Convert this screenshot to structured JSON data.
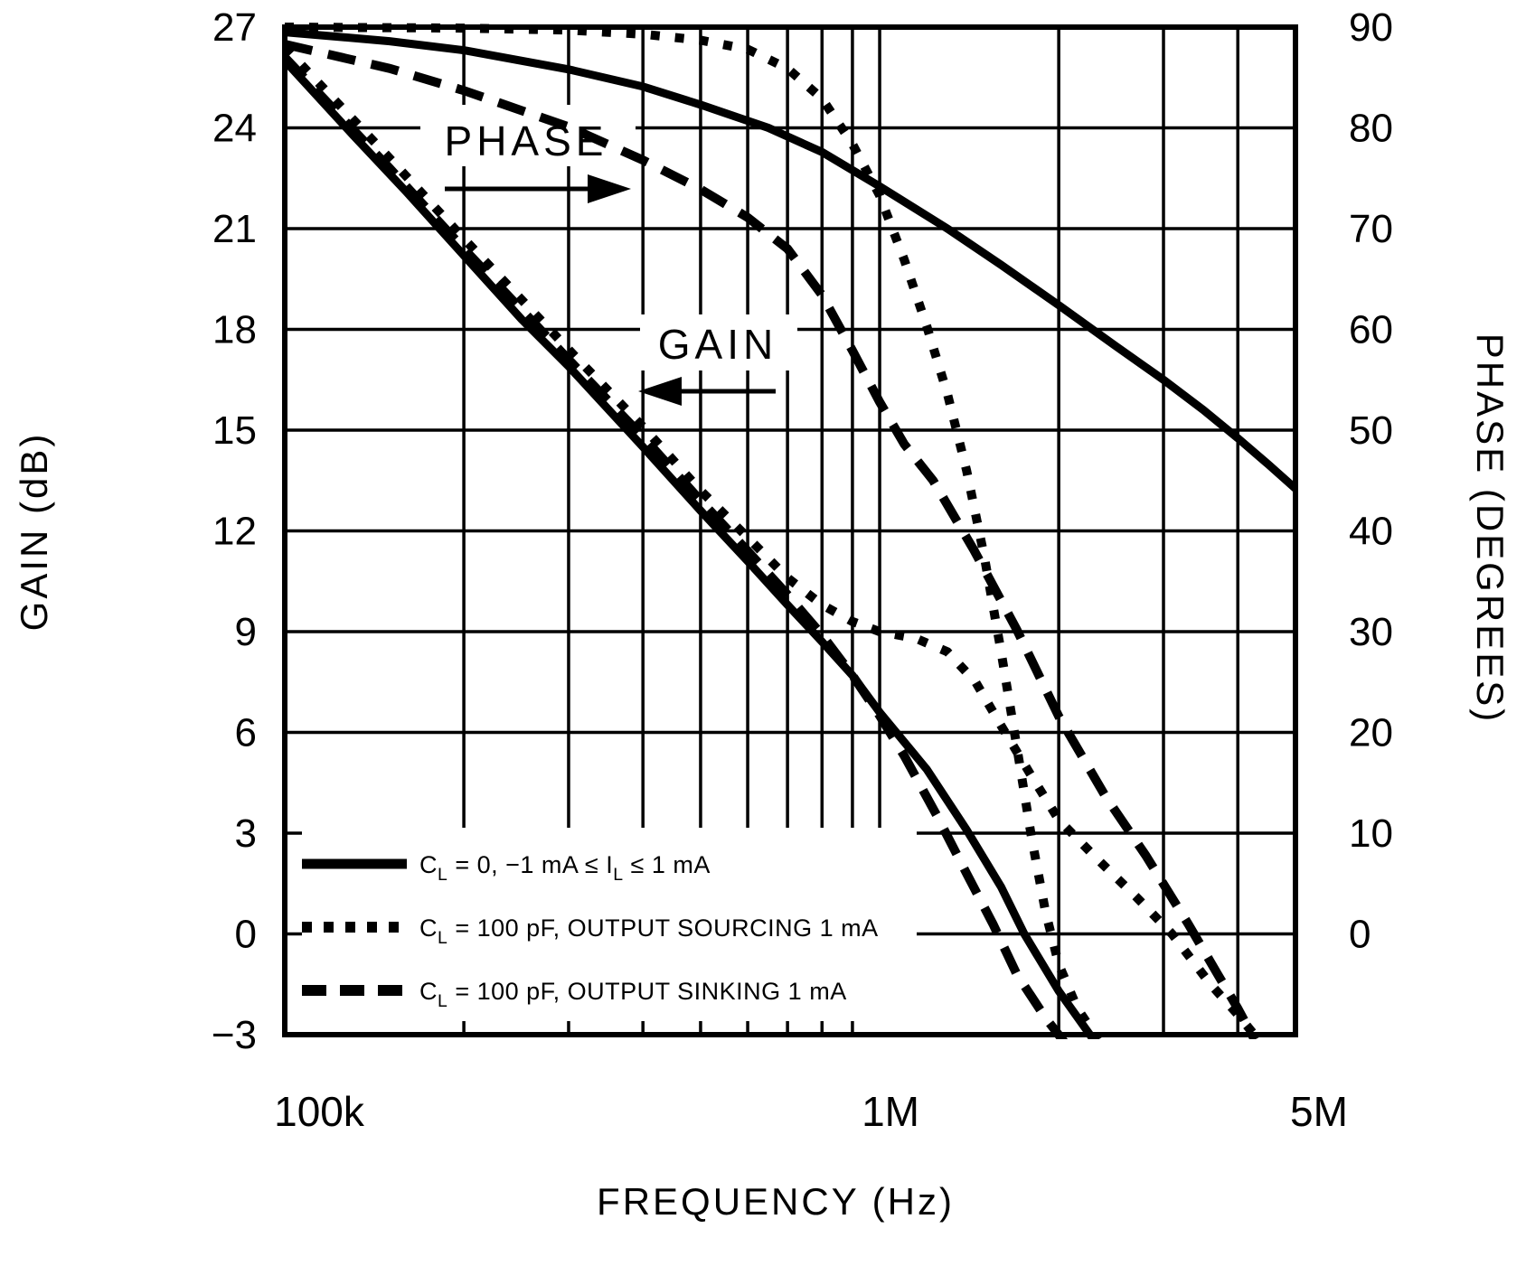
{
  "figure": {
    "background": "#ffffff",
    "line_color": "#000000"
  },
  "chart_data": {
    "type": "line",
    "title": "",
    "x_axis": {
      "label": "FREQUENCY (Hz)",
      "scale": "log",
      "min": 100000,
      "max": 5000000,
      "tick_labels": [
        {
          "text": "100k",
          "value": 100000
        },
        {
          "text": "1M",
          "value": 1000000
        },
        {
          "text": "5M",
          "value": 5000000
        }
      ],
      "gridline_frequencies": [
        100000,
        200000,
        300000,
        400000,
        500000,
        600000,
        700000,
        800000,
        900000,
        1000000,
        2000000,
        3000000,
        4000000,
        5000000
      ],
      "minor_tick_frequencies": [
        200000,
        300000,
        400000,
        500000,
        600000,
        700000,
        800000,
        900000
      ]
    },
    "y_axis_left": {
      "label": "GAIN (dB)",
      "min": -3,
      "max": 27,
      "step": 3,
      "ticks": [
        27,
        24,
        21,
        18,
        15,
        12,
        9,
        6,
        3,
        0,
        -3
      ]
    },
    "y_axis_right": {
      "label": "PHASE (DEGREES)",
      "min": -10,
      "max": 90,
      "step": 10,
      "ticks": [
        90,
        80,
        70,
        60,
        50,
        40,
        30,
        20,
        10,
        0
      ]
    },
    "grid": true,
    "legend_position": "bottom-left-inside",
    "series": [
      {
        "id": "gain-cl0",
        "quantity": "gain",
        "axis": "left",
        "style": "solid",
        "condition": "C_L = 0, −1 mA ≤ I_L ≤ 1 mA",
        "points": [
          [
            100000,
            26
          ],
          [
            130000,
            23.8
          ],
          [
            160000,
            22.1
          ],
          [
            200000,
            20.2
          ],
          [
            250000,
            18.3
          ],
          [
            300000,
            16.9
          ],
          [
            400000,
            14.5
          ],
          [
            500000,
            12.6
          ],
          [
            600000,
            11.1
          ],
          [
            700000,
            9.8
          ],
          [
            800000,
            8.7
          ],
          [
            900000,
            7.7
          ],
          [
            1000000,
            6.6
          ],
          [
            1200000,
            4.9
          ],
          [
            1400000,
            3.1
          ],
          [
            1600000,
            1.4
          ],
          [
            1750000,
            0
          ],
          [
            2000000,
            -1.7
          ],
          [
            2320000,
            -3.3
          ]
        ]
      },
      {
        "id": "gain-sourcing",
        "quantity": "gain",
        "axis": "left",
        "style": "dotted",
        "condition": "C_L = 100 pF, OUTPUT SOURCING 1 mA",
        "points": [
          [
            100000,
            26.4
          ],
          [
            150000,
            23.1
          ],
          [
            200000,
            20.7
          ],
          [
            300000,
            17.4
          ],
          [
            400000,
            15.1
          ],
          [
            500000,
            13.2
          ],
          [
            600000,
            11.8
          ],
          [
            700000,
            10.6
          ],
          [
            800000,
            9.8
          ],
          [
            900000,
            9.3
          ],
          [
            1000000,
            9.0
          ],
          [
            1150000,
            8.8
          ],
          [
            1300000,
            8.4
          ],
          [
            1450000,
            7.5
          ],
          [
            1600000,
            6.2
          ],
          [
            1800000,
            4.7
          ],
          [
            2000000,
            3.4
          ],
          [
            2300000,
            2.3
          ],
          [
            2700000,
            1.1
          ],
          [
            3100000,
            0
          ],
          [
            3600000,
            -1.5
          ],
          [
            4000000,
            -2.4
          ],
          [
            4400000,
            -3.3
          ]
        ]
      },
      {
        "id": "gain-sinking",
        "quantity": "gain",
        "axis": "left",
        "style": "dashed",
        "condition": "C_L = 100 pF, OUTPUT SINKING 1 mA",
        "points": [
          [
            100000,
            26.1
          ],
          [
            150000,
            22.8
          ],
          [
            200000,
            20.4
          ],
          [
            300000,
            17.1
          ],
          [
            400000,
            14.8
          ],
          [
            500000,
            12.9
          ],
          [
            600000,
            11.4
          ],
          [
            700000,
            10.1
          ],
          [
            800000,
            8.9
          ],
          [
            900000,
            7.7
          ],
          [
            1000000,
            6.5
          ],
          [
            1100000,
            5.3
          ],
          [
            1250000,
            3.5
          ],
          [
            1400000,
            1.8
          ],
          [
            1550000,
            0.3
          ],
          [
            1700000,
            -1.2
          ],
          [
            1900000,
            -2.5
          ],
          [
            2060000,
            -3.3
          ]
        ]
      },
      {
        "id": "phase-cl0",
        "quantity": "phase",
        "axis": "right",
        "style": "solid",
        "condition": "C_L = 0, −1 mA ≤ I_L ≤ 1 mA",
        "points": [
          [
            100000,
            89.5
          ],
          [
            150000,
            88.6
          ],
          [
            200000,
            87.7
          ],
          [
            300000,
            85.8
          ],
          [
            400000,
            84.1
          ],
          [
            500000,
            82.3
          ],
          [
            650000,
            80
          ],
          [
            800000,
            77.6
          ],
          [
            1000000,
            74.2
          ],
          [
            1300000,
            70
          ],
          [
            1600000,
            66.4
          ],
          [
            2000000,
            62.4
          ],
          [
            2500000,
            58.3
          ],
          [
            3000000,
            55
          ],
          [
            3500000,
            52
          ],
          [
            4000000,
            49.2
          ],
          [
            4500000,
            46.6
          ],
          [
            5000000,
            44.2
          ]
        ]
      },
      {
        "id": "phase-sourcing",
        "quantity": "phase",
        "axis": "right",
        "style": "dotted",
        "condition": "C_L = 100 pF, OUTPUT SOURCING 1 mA",
        "points": [
          [
            100000,
            90
          ],
          [
            200000,
            89.9
          ],
          [
            300000,
            89.7
          ],
          [
            400000,
            89.3
          ],
          [
            500000,
            88.7
          ],
          [
            600000,
            87.8
          ],
          [
            700000,
            85.9
          ],
          [
            800000,
            82.9
          ],
          [
            900000,
            78.4
          ],
          [
            1000000,
            73.3
          ],
          [
            1100000,
            66.9
          ],
          [
            1200000,
            60.3
          ],
          [
            1300000,
            53.6
          ],
          [
            1400000,
            46
          ],
          [
            1500000,
            37.4
          ],
          [
            1600000,
            28
          ],
          [
            1700000,
            18.6
          ],
          [
            1800000,
            9.6
          ],
          [
            1900000,
            2.2
          ],
          [
            2000000,
            -3
          ],
          [
            2150000,
            -7.4
          ],
          [
            2330000,
            -10.5
          ]
        ]
      },
      {
        "id": "phase-sinking",
        "quantity": "phase",
        "axis": "right",
        "style": "dashed",
        "condition": "C_L = 100 pF, OUTPUT SINKING 1 mA",
        "points": [
          [
            100000,
            88.3
          ],
          [
            150000,
            85.9
          ],
          [
            200000,
            83.7
          ],
          [
            300000,
            80.1
          ],
          [
            400000,
            76.8
          ],
          [
            500000,
            73.9
          ],
          [
            600000,
            71.1
          ],
          [
            700000,
            68
          ],
          [
            800000,
            63.4
          ],
          [
            900000,
            57.9
          ],
          [
            1000000,
            52.8
          ],
          [
            1100000,
            48.6
          ],
          [
            1230000,
            45
          ],
          [
            1440000,
            38.1
          ],
          [
            1700000,
            30.2
          ],
          [
            2000000,
            21.6
          ],
          [
            2400000,
            13.6
          ],
          [
            2800000,
            7.8
          ],
          [
            3300000,
            1
          ],
          [
            3700000,
            -4
          ],
          [
            4000000,
            -7.4
          ],
          [
            4270000,
            -10.5
          ]
        ]
      }
    ],
    "legend": [
      {
        "style": "solid",
        "label": "C_L = 0, −1 mA ≤ I_L ≤ 1 mA"
      },
      {
        "style": "dotted",
        "label": "C_L = 100 pF, OUTPUT SOURCING 1 mA"
      },
      {
        "style": "dashed",
        "label": "C_L = 100 pF, OUTPUT SINKING 1 mA"
      }
    ],
    "annotations": [
      {
        "id": "phase",
        "text": "PHASE",
        "arrow_direction": "right",
        "meaning": "points to right phase axis"
      },
      {
        "id": "gain",
        "text": "GAIN",
        "arrow_direction": "left",
        "meaning": "points to left gain axis"
      }
    ]
  }
}
